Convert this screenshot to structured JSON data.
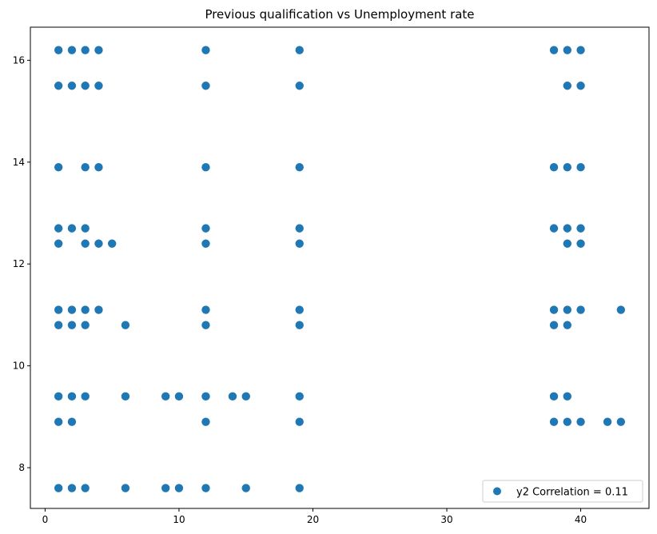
{
  "chart_data": {
    "type": "scatter",
    "title": "Previous qualification vs Unemployment rate",
    "xlabel": "",
    "ylabel": "",
    "xlim": [
      -1.1,
      45.1
    ],
    "ylim": [
      7.2,
      16.65
    ],
    "xticks": [
      0,
      10,
      20,
      30,
      40
    ],
    "yticks": [
      8,
      10,
      12,
      14,
      16
    ],
    "grid": false,
    "legend": {
      "placement": "bottom-right",
      "entries": [
        "y2 Correlation = 0.11"
      ]
    },
    "colors": {
      "points": "#1f77b4"
    },
    "series": [
      {
        "name": "y2 Correlation = 0.11",
        "points": [
          [
            1,
            16.2
          ],
          [
            2,
            16.2
          ],
          [
            3,
            16.2
          ],
          [
            4,
            16.2
          ],
          [
            12,
            16.2
          ],
          [
            19,
            16.2
          ],
          [
            38,
            16.2
          ],
          [
            39,
            16.2
          ],
          [
            40,
            16.2
          ],
          [
            1,
            15.5
          ],
          [
            2,
            15.5
          ],
          [
            3,
            15.5
          ],
          [
            4,
            15.5
          ],
          [
            12,
            15.5
          ],
          [
            19,
            15.5
          ],
          [
            39,
            15.5
          ],
          [
            40,
            15.5
          ],
          [
            1,
            13.9
          ],
          [
            3,
            13.9
          ],
          [
            4,
            13.9
          ],
          [
            12,
            13.9
          ],
          [
            19,
            13.9
          ],
          [
            38,
            13.9
          ],
          [
            39,
            13.9
          ],
          [
            40,
            13.9
          ],
          [
            1,
            12.7
          ],
          [
            2,
            12.7
          ],
          [
            3,
            12.7
          ],
          [
            12,
            12.7
          ],
          [
            19,
            12.7
          ],
          [
            38,
            12.7
          ],
          [
            39,
            12.7
          ],
          [
            40,
            12.7
          ],
          [
            1,
            12.4
          ],
          [
            3,
            12.4
          ],
          [
            4,
            12.4
          ],
          [
            5,
            12.4
          ],
          [
            12,
            12.4
          ],
          [
            19,
            12.4
          ],
          [
            39,
            12.4
          ],
          [
            40,
            12.4
          ],
          [
            1,
            11.1
          ],
          [
            2,
            11.1
          ],
          [
            3,
            11.1
          ],
          [
            4,
            11.1
          ],
          [
            12,
            11.1
          ],
          [
            19,
            11.1
          ],
          [
            38,
            11.1
          ],
          [
            39,
            11.1
          ],
          [
            40,
            11.1
          ],
          [
            43,
            11.1
          ],
          [
            1,
            10.8
          ],
          [
            2,
            10.8
          ],
          [
            3,
            10.8
          ],
          [
            6,
            10.8
          ],
          [
            12,
            10.8
          ],
          [
            19,
            10.8
          ],
          [
            38,
            10.8
          ],
          [
            39,
            10.8
          ],
          [
            1,
            9.4
          ],
          [
            2,
            9.4
          ],
          [
            3,
            9.4
          ],
          [
            6,
            9.4
          ],
          [
            9,
            9.4
          ],
          [
            10,
            9.4
          ],
          [
            12,
            9.4
          ],
          [
            14,
            9.4
          ],
          [
            15,
            9.4
          ],
          [
            19,
            9.4
          ],
          [
            38,
            9.4
          ],
          [
            39,
            9.4
          ],
          [
            1,
            8.9
          ],
          [
            2,
            8.9
          ],
          [
            12,
            8.9
          ],
          [
            19,
            8.9
          ],
          [
            38,
            8.9
          ],
          [
            39,
            8.9
          ],
          [
            40,
            8.9
          ],
          [
            42,
            8.9
          ],
          [
            43,
            8.9
          ],
          [
            1,
            7.6
          ],
          [
            2,
            7.6
          ],
          [
            3,
            7.6
          ],
          [
            6,
            7.6
          ],
          [
            9,
            7.6
          ],
          [
            10,
            7.6
          ],
          [
            12,
            7.6
          ],
          [
            15,
            7.6
          ],
          [
            19,
            7.6
          ]
        ]
      }
    ]
  }
}
